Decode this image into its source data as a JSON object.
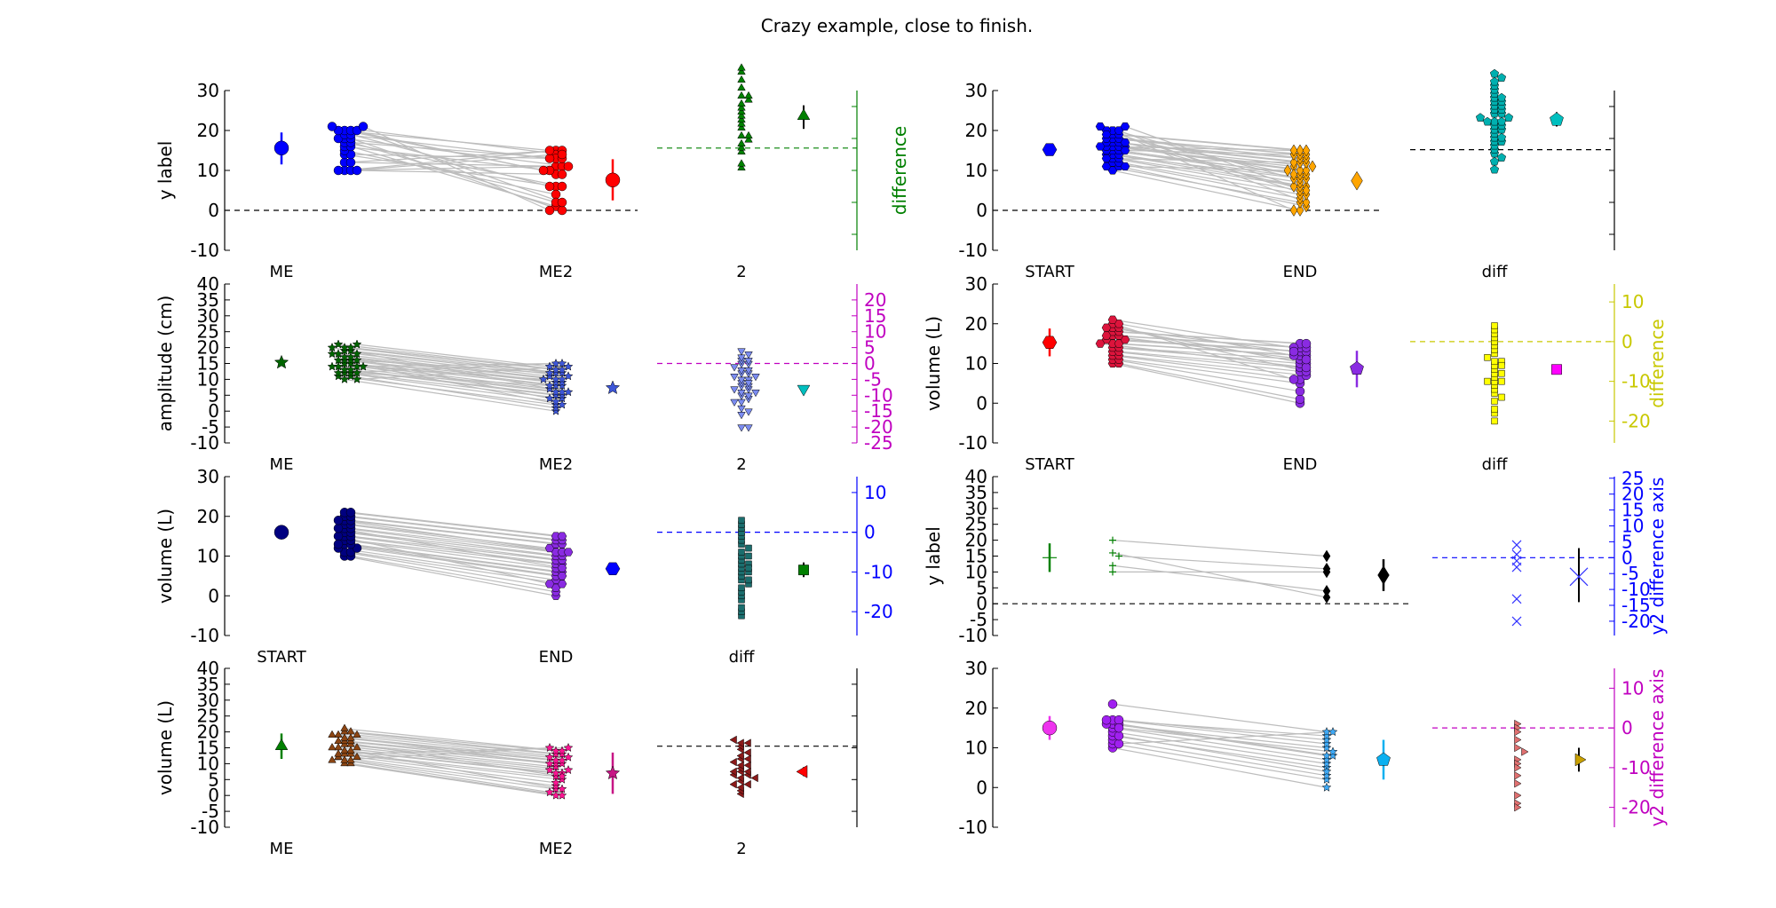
{
  "figure": {
    "title": "Crazy example, close to finish."
  },
  "chart_data": [
    {
      "type": "scatter",
      "ylabel": "y label",
      "ylim": [
        -10,
        30
      ],
      "yticks": [
        -10,
        0,
        10,
        20,
        30
      ],
      "categories": [
        "ME",
        "ME2",
        "2"
      ],
      "refline": 0,
      "colors": {
        "g1": "#0000ff",
        "g2": "#ff0000",
        "diff": "#008000",
        "diffMean": "#008000"
      },
      "markers": {
        "g1": "circle",
        "g2": "circle",
        "diff": "triangle",
        "diffMean": "triangle"
      },
      "group1": [
        10,
        10,
        10,
        10,
        12,
        12,
        14,
        14,
        15,
        16,
        16,
        17,
        17,
        18,
        18,
        18,
        19,
        19,
        20,
        20,
        20,
        20,
        21,
        21
      ],
      "group2": [
        15,
        14,
        11,
        9,
        15,
        11,
        6,
        13,
        4,
        10,
        1,
        6,
        13,
        11,
        0,
        2,
        13,
        6,
        10,
        9,
        15,
        2,
        14,
        0
      ],
      "g1_stat": {
        "mean": 15.6,
        "lo": 11.5,
        "hi": 19.5
      },
      "g2_stat": {
        "mean": 7.6,
        "lo": 2.5,
        "hi": 12.8
      },
      "diff_values": [
        -5,
        -4,
        -1,
        0,
        1,
        2,
        3,
        3,
        5,
        6,
        7,
        8,
        9,
        10,
        11,
        12,
        13,
        13,
        15,
        17,
        19,
        20
      ],
      "diff_stat": {
        "mean": 8,
        "lo": 4.8,
        "hi": 10.7
      },
      "diff_axis": {
        "label": "difference",
        "color": "#008000",
        "ticks": []
      },
      "diff_ref_color": "#008000"
    },
    {
      "type": "scatter",
      "ylabel": "",
      "ylim": [
        -10,
        30
      ],
      "yticks": [
        -10,
        0,
        10,
        20,
        30
      ],
      "categories": [
        "START",
        "END",
        "diff"
      ],
      "refline": 0,
      "colors": {
        "g1": "#0000ff",
        "g2": "#ffa500",
        "diff": "#00b0b0",
        "diffMean": "#00bfbf"
      },
      "markers": {
        "g1": "hexagon",
        "g2": "diamond",
        "diff": "pentagon",
        "diffMean": "pentagon"
      },
      "group1": [
        10,
        11,
        11,
        12,
        12,
        13,
        13,
        14,
        14,
        14,
        15,
        15,
        15,
        16,
        16,
        16,
        16,
        17,
        17,
        17,
        18,
        18,
        18,
        19,
        19,
        20,
        20,
        20,
        21,
        21,
        11,
        13,
        15,
        16,
        17,
        19
      ],
      "group2": [
        0,
        1,
        2,
        3,
        4,
        5,
        6,
        6,
        7,
        8,
        8,
        9,
        9,
        10,
        10,
        11,
        11,
        12,
        12,
        13,
        13,
        14,
        14,
        15,
        15,
        0,
        2,
        4,
        6,
        8,
        10,
        12,
        14,
        15,
        5,
        9
      ],
      "g1_stat": {
        "mean": 15.2,
        "lo": 14.2,
        "hi": 16.2
      },
      "g2_stat": {
        "mean": 7.4,
        "lo": 5.8,
        "hi": 9.0
      },
      "diff_values": [
        -5,
        -3,
        -2,
        -1,
        0,
        1,
        2,
        2,
        3,
        3,
        4,
        5,
        5,
        6,
        6,
        7,
        7,
        7,
        8,
        8,
        9,
        9,
        10,
        10,
        11,
        11,
        12,
        12,
        13,
        13,
        14,
        15,
        16,
        17,
        18,
        19
      ],
      "diff_stat": {
        "mean": 7.5,
        "lo": 5.8,
        "hi": 9.4
      },
      "diff_axis": {
        "label": "",
        "color": "#000000",
        "ticks": []
      },
      "diff_ref_color": "#000000"
    },
    {
      "type": "scatter",
      "ylabel": "amplitude (cm)",
      "ylim": [
        -10,
        40
      ],
      "yticks": [
        -10,
        -5,
        0,
        5,
        10,
        15,
        20,
        25,
        30,
        35,
        40
      ],
      "categories": [
        "ME",
        "ME2",
        "2"
      ],
      "refline": null,
      "colors": {
        "g1": "#006400",
        "g2": "#3d56d8",
        "diff": "#7b8cf0",
        "diffMean": "#00bfbf"
      },
      "markers": {
        "g1": "star",
        "g2": "star",
        "diff": "triangle-down",
        "diffMean": "triangle-down"
      },
      "group1": [
        10,
        11,
        11,
        12,
        12,
        13,
        13,
        14,
        14,
        15,
        15,
        16,
        16,
        17,
        17,
        18,
        18,
        19,
        19,
        20,
        20,
        21,
        21,
        10,
        12,
        14,
        16,
        18,
        20,
        12,
        14,
        16
      ],
      "group2": [
        0,
        1,
        2,
        3,
        4,
        5,
        5,
        6,
        6,
        7,
        8,
        8,
        9,
        9,
        10,
        10,
        11,
        11,
        12,
        12,
        13,
        13,
        14,
        14,
        15,
        15,
        2,
        4,
        6,
        8,
        10,
        12
      ],
      "g1_stat": {
        "mean": 15.3,
        "lo": 15.0,
        "hi": 15.6
      },
      "g2_stat": {
        "mean": 7.3,
        "lo": 6.7,
        "hi": 7.9
      },
      "diff_values": [
        -20,
        -20,
        -16,
        -15,
        -14,
        -12,
        -11,
        -10,
        -10,
        -9,
        -8,
        -8,
        -7,
        -7,
        -6,
        -5,
        -5,
        -4,
        -4,
        -3,
        -3,
        -2,
        -2,
        -1,
        0,
        0,
        1,
        1,
        2,
        3,
        4,
        -12,
        -6,
        -9
      ],
      "diff_stat": {
        "mean": -8,
        "lo": -8.7,
        "hi": -7.3
      },
      "diff_axis": {
        "label": "",
        "color": "#c000c0",
        "ticks": [
          -25,
          -20,
          -15,
          -10,
          -5,
          0,
          5,
          10,
          15,
          20
        ],
        "zero_in_data": 15
      },
      "diff_ref_color": "#c000c0"
    },
    {
      "type": "scatter",
      "ylabel": "volume (L)",
      "ylim": [
        -10,
        30
      ],
      "yticks": [
        -10,
        0,
        10,
        20,
        30
      ],
      "categories": [
        "START",
        "END",
        "diff"
      ],
      "refline": null,
      "colors": {
        "g1": "#dc143c",
        "g2": "#8a2be2",
        "diff": "#ffff00",
        "diffMean": "#ff00ff",
        "g1Mean": "#ff0000"
      },
      "markers": {
        "g1": "hexagon",
        "g2": "circle",
        "diff": "square",
        "diffMean": "square",
        "g2Mean": "pentagon"
      },
      "group1": [
        10,
        10,
        11,
        11,
        12,
        12,
        13,
        13,
        14,
        14,
        15,
        15,
        16,
        16,
        17,
        17,
        18,
        18,
        19,
        19,
        20,
        20,
        21,
        15,
        17,
        19
      ],
      "group2": [
        0,
        1,
        3,
        5,
        6,
        7,
        8,
        9,
        10,
        11,
        12,
        12,
        13,
        13,
        14,
        14,
        15,
        15,
        10,
        8,
        6,
        12,
        14,
        9,
        11,
        13
      ],
      "g1_stat": {
        "mean": 15.3,
        "lo": 11.8,
        "hi": 18.8
      },
      "g2_stat": {
        "mean": 8.7,
        "lo": 4,
        "hi": 13.2
      },
      "diff_values": [
        -20,
        -18,
        -17,
        -15,
        -14,
        -13,
        -12,
        -11,
        -10,
        -10,
        -9,
        -8,
        -8,
        -7,
        -6,
        -5,
        -5,
        -4,
        -3,
        -2,
        -1,
        0,
        1,
        2,
        3,
        4,
        -6,
        -10
      ],
      "diff_stat": {
        "mean": -7,
        "lo": -7.8,
        "hi": -6.2
      },
      "diff_axis": {
        "label": "difference",
        "color": "#c8c800",
        "ticks": [
          -20,
          -10,
          0,
          10
        ],
        "zero_in_data": 15.5
      },
      "diff_ref_color": "#c8c800"
    },
    {
      "type": "scatter",
      "ylabel": "volume (L)",
      "ylim": [
        -10,
        30
      ],
      "yticks": [
        -10,
        0,
        10,
        20,
        30
      ],
      "categories": [
        "START",
        "END",
        "diff"
      ],
      "refline": null,
      "colors": {
        "g1": "#000080",
        "g2": "#8a2be2",
        "diff": "#1b6e6e",
        "diffMean": "#008000",
        "g2Mean": "#0000ff"
      },
      "markers": {
        "g1": "circle",
        "g2": "hexagon",
        "diff": "square",
        "diffMean": "square"
      },
      "group1": [
        10,
        10,
        11,
        11,
        12,
        12,
        13,
        13,
        14,
        14,
        15,
        15,
        16,
        16,
        17,
        17,
        18,
        18,
        19,
        19,
        20,
        20,
        21,
        21,
        15,
        17,
        19,
        13
      ],
      "group2": [
        0,
        1,
        2,
        3,
        4,
        5,
        6,
        6,
        7,
        8,
        8,
        9,
        9,
        10,
        10,
        11,
        11,
        12,
        13,
        13,
        14,
        14,
        15,
        15,
        3,
        7,
        11,
        5
      ],
      "g1_stat": {
        "mean": 16,
        "lo": 15.6,
        "hi": 16.4
      },
      "g2_stat": {
        "mean": 6.8,
        "lo": 5.4,
        "hi": 8.2
      },
      "diff_values": [
        -21,
        -20,
        -19,
        -17,
        -16,
        -15,
        -14,
        -13,
        -12,
        -11,
        -10,
        -10,
        -9,
        -8,
        -8,
        -7,
        -6,
        -6,
        -5,
        -4,
        -3,
        -2,
        -1,
        0,
        1,
        2,
        3,
        -12,
        -9
      ],
      "diff_stat": {
        "mean": -9.5,
        "lo": -11.3,
        "hi": -7.6
      },
      "diff_axis": {
        "label": "",
        "color": "#0000ff",
        "ticks": [
          -20,
          -10,
          0,
          10
        ],
        "zero_in_data": 16
      },
      "diff_ref_color": "#0000ff"
    },
    {
      "type": "scatter",
      "ylabel": "y label",
      "ylim": [
        -10,
        40
      ],
      "yticks": [
        -10,
        -5,
        0,
        5,
        10,
        15,
        20,
        25,
        30,
        35,
        40
      ],
      "categories": [],
      "refline": 0,
      "colors": {
        "g1": "#008000",
        "g2": "#000000",
        "diff": "#3333ff",
        "diffMean": "#3333ff"
      },
      "markers": {
        "g1": "plus",
        "g2": "diamond",
        "diff": "x",
        "diffMean": "x"
      },
      "group1": [
        20,
        16,
        15,
        12,
        10
      ],
      "group2": [
        15,
        2,
        11,
        4,
        10
      ],
      "g1_stat": {
        "mean": 14.5,
        "lo": 10,
        "hi": 19
      },
      "g2_stat": {
        "mean": 9,
        "lo": 4,
        "hi": 14
      },
      "diff_values": [
        4,
        1,
        -1,
        -3,
        -13,
        -20
      ],
      "diff_stat": {
        "mean": -6,
        "lo": -14,
        "hi": 3
      },
      "diff_axis": {
        "label": "y2 difference axis",
        "color": "#0000ff",
        "ticks": [
          -20,
          -15,
          -10,
          -5,
          0,
          5,
          10,
          15,
          20,
          25
        ],
        "zero_in_data": 14.5
      },
      "diff_ref_color": "#0000ff"
    },
    {
      "type": "scatter",
      "ylabel": "volume (L)",
      "ylim": [
        -10,
        40
      ],
      "yticks": [
        -10,
        -5,
        0,
        5,
        10,
        15,
        20,
        25,
        30,
        35,
        40
      ],
      "categories": [
        "ME",
        "ME2",
        "2"
      ],
      "refline": null,
      "colors": {
        "g1": "#8b4513",
        "g2": "#ff1493",
        "diff": "#8b1a1a",
        "diffMean": "#ff0000",
        "g1Mean": "#008000",
        "g2Mean": "#c71585"
      },
      "markers": {
        "g1": "triangle",
        "g2": "star",
        "diff": "triangle-left",
        "diffMean": "triangle-left",
        "g1Mean": "triangle"
      },
      "group1": [
        10,
        10,
        11,
        11,
        12,
        12,
        13,
        13,
        14,
        14,
        15,
        15,
        16,
        16,
        17,
        17,
        18,
        18,
        19,
        19,
        20,
        20,
        21,
        11,
        13,
        15,
        17,
        19
      ],
      "group2": [
        0,
        0,
        1,
        2,
        3,
        4,
        5,
        6,
        7,
        7,
        8,
        8,
        9,
        10,
        10,
        11,
        11,
        12,
        12,
        13,
        13,
        14,
        14,
        15,
        15,
        2,
        6,
        10
      ],
      "g1_stat": {
        "mean": 15.5,
        "lo": 11.5,
        "hi": 19.5
      },
      "g2_stat": {
        "mean": 7,
        "lo": 0.5,
        "hi": 13.5
      },
      "diff_values": [
        -15,
        -14,
        -13,
        -12,
        -12,
        -11,
        -10,
        -9,
        -9,
        -8,
        -8,
        -7,
        -6,
        -6,
        -5,
        -4,
        -4,
        -3,
        -2,
        -1,
        0,
        1,
        1,
        2,
        -8,
        -10
      ],
      "diff_stat": {
        "mean": -8,
        "lo": -9.4,
        "hi": -6.6
      },
      "diff_axis": {
        "label": "",
        "color": "#000000",
        "ticks": [],
        "zero_in_data": 15.5
      },
      "diff_ref_color": "#000000"
    },
    {
      "type": "scatter",
      "ylabel": "",
      "ylim": [
        -10,
        30
      ],
      "yticks": [
        -10,
        0,
        10,
        20,
        30
      ],
      "categories": [],
      "refline": null,
      "colors": {
        "g1": "#a020f0",
        "g2": "#3fa9f5",
        "diff": "#e07070",
        "diffMean": "#c8a000",
        "g1Mean": "#ee33ee",
        "g2Mean": "#0ab0f0"
      },
      "markers": {
        "g1": "circle",
        "g2": "star",
        "diff": "triangle-right",
        "diffMean": "triangle-right",
        "g1Mean": "circle",
        "g2Mean": "pentagon"
      },
      "group1": [
        10,
        11,
        12,
        13,
        14,
        15,
        16,
        16,
        16,
        17,
        17,
        17,
        21,
        11,
        13,
        15
      ],
      "group2": [
        0,
        2,
        3,
        5,
        6,
        7,
        8,
        8,
        10,
        11,
        12,
        13,
        14,
        14,
        4,
        9
      ],
      "g1_stat": {
        "mean": 15,
        "lo": 12,
        "hi": 18
      },
      "g2_stat": {
        "mean": 7,
        "lo": 2,
        "hi": 12
      },
      "diff_values": [
        1,
        0,
        -1,
        -3,
        -5,
        -8,
        -9,
        -10,
        -12,
        -14,
        -17,
        -19,
        -20,
        -6
      ],
      "diff_stat": {
        "mean": -8,
        "lo": -11,
        "hi": -5
      },
      "diff_axis": {
        "label": "y2 difference axis",
        "color": "#c000c0",
        "ticks": [
          -20,
          -10,
          0,
          10
        ],
        "zero_in_data": 15
      },
      "diff_ref_color": "#c000c0"
    }
  ]
}
